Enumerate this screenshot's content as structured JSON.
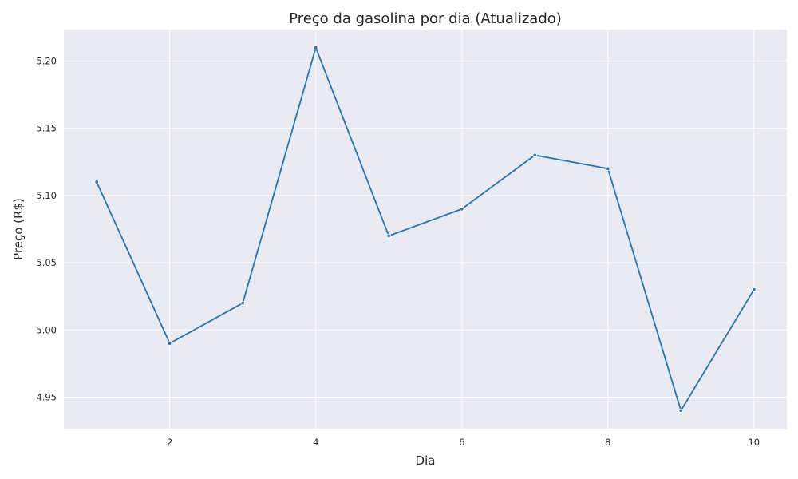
{
  "chart_data": {
    "type": "line",
    "title": "Preço da gasolina por dia (Atualizado)",
    "xlabel": "Dia",
    "ylabel": "Preço (R$)",
    "x": [
      1,
      2,
      3,
      4,
      5,
      6,
      7,
      8,
      9,
      10
    ],
    "series": [
      {
        "values": [
          5.11,
          4.99,
          5.02,
          5.21,
          5.07,
          5.09,
          5.13,
          5.12,
          4.94,
          5.03
        ]
      }
    ],
    "xticks": [
      2,
      4,
      6,
      8,
      10
    ],
    "yticks": [
      "4.95",
      "5.00",
      "5.05",
      "5.10",
      "5.15",
      "5.20"
    ],
    "xlim": [
      0.55,
      10.45
    ],
    "ylim": [
      4.9265,
      5.2235
    ],
    "grid": true,
    "line_color": "#1f77b4",
    "background_color": "#eaeaf2",
    "grid_color": "#ffffff"
  }
}
